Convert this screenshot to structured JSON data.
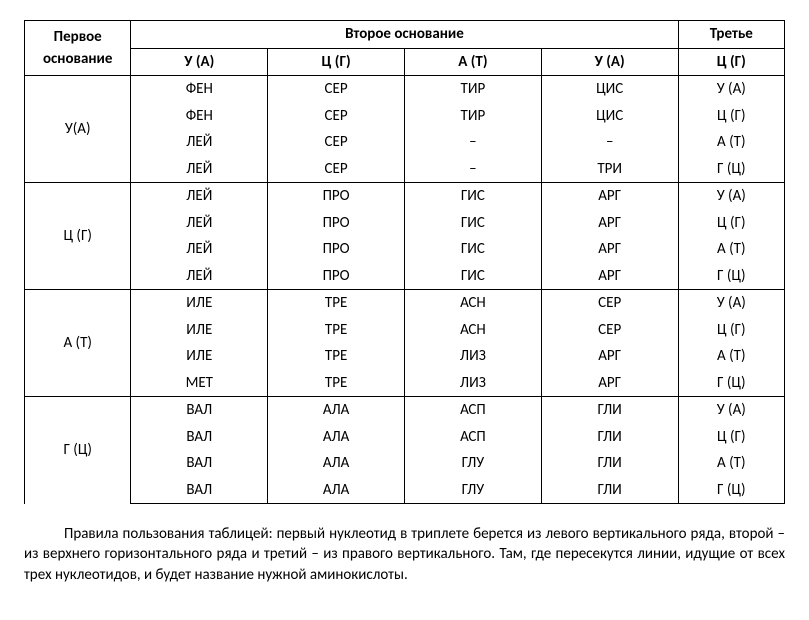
{
  "headers": {
    "first_base": "Первое основание",
    "second_base": "Второе основание",
    "third_base": "Третье",
    "third_base_sub": "Ц (Г)",
    "cols": [
      "У (А)",
      "Ц (Г)",
      "А (Т)",
      "У (А)"
    ]
  },
  "first_bases": [
    "У(А)",
    "Ц (Г)",
    "А (Т)",
    "Г (Ц)"
  ],
  "third_bases": [
    "У (А)",
    "Ц (Г)",
    "А (Т)",
    "Г (Ц)"
  ],
  "grid": [
    [
      [
        "ФЕН",
        "СЕР",
        "ТИР",
        "ЦИС"
      ],
      [
        "ФЕН",
        "СЕР",
        "ТИР",
        "ЦИС"
      ],
      [
        "ЛЕЙ",
        "СЕР",
        "–",
        "–"
      ],
      [
        "ЛЕЙ",
        "СЕР",
        "–",
        "ТРИ"
      ]
    ],
    [
      [
        "ЛЕЙ",
        "ПРО",
        "ГИС",
        "АРГ"
      ],
      [
        "ЛЕЙ",
        "ПРО",
        "ГИС",
        "АРГ"
      ],
      [
        "ЛЕЙ",
        "ПРО",
        "ГИС",
        "АРГ"
      ],
      [
        "ЛЕЙ",
        "ПРО",
        "ГИС",
        "АРГ"
      ]
    ],
    [
      [
        "ИЛЕ",
        "ТРЕ",
        "АСН",
        "СЕР"
      ],
      [
        "ИЛЕ",
        "ТРЕ",
        "АСН",
        "СЕР"
      ],
      [
        "ИЛЕ",
        "ТРЕ",
        "ЛИЗ",
        "АРГ"
      ],
      [
        "МЕТ",
        "ТРЕ",
        "ЛИЗ",
        "АРГ"
      ]
    ],
    [
      [
        "ВАЛ",
        "АЛА",
        "АСП",
        "ГЛИ"
      ],
      [
        "ВАЛ",
        "АЛА",
        "АСП",
        "ГЛИ"
      ],
      [
        "ВАЛ",
        "АЛА",
        "ГЛУ",
        "ГЛИ"
      ],
      [
        "ВАЛ",
        "АЛА",
        "ГЛУ",
        "ГЛИ"
      ]
    ]
  ],
  "caption": "Правила пользования таблицей: первый нуклеотид в триплете берется из левого вертикального ряда, второй – из верхнего горизонтального ряда и третий – из правого вертикального. Там, где пересекутся линии, идущие от всех трех нуклеотидов, и будет название нужной аминокислоты."
}
